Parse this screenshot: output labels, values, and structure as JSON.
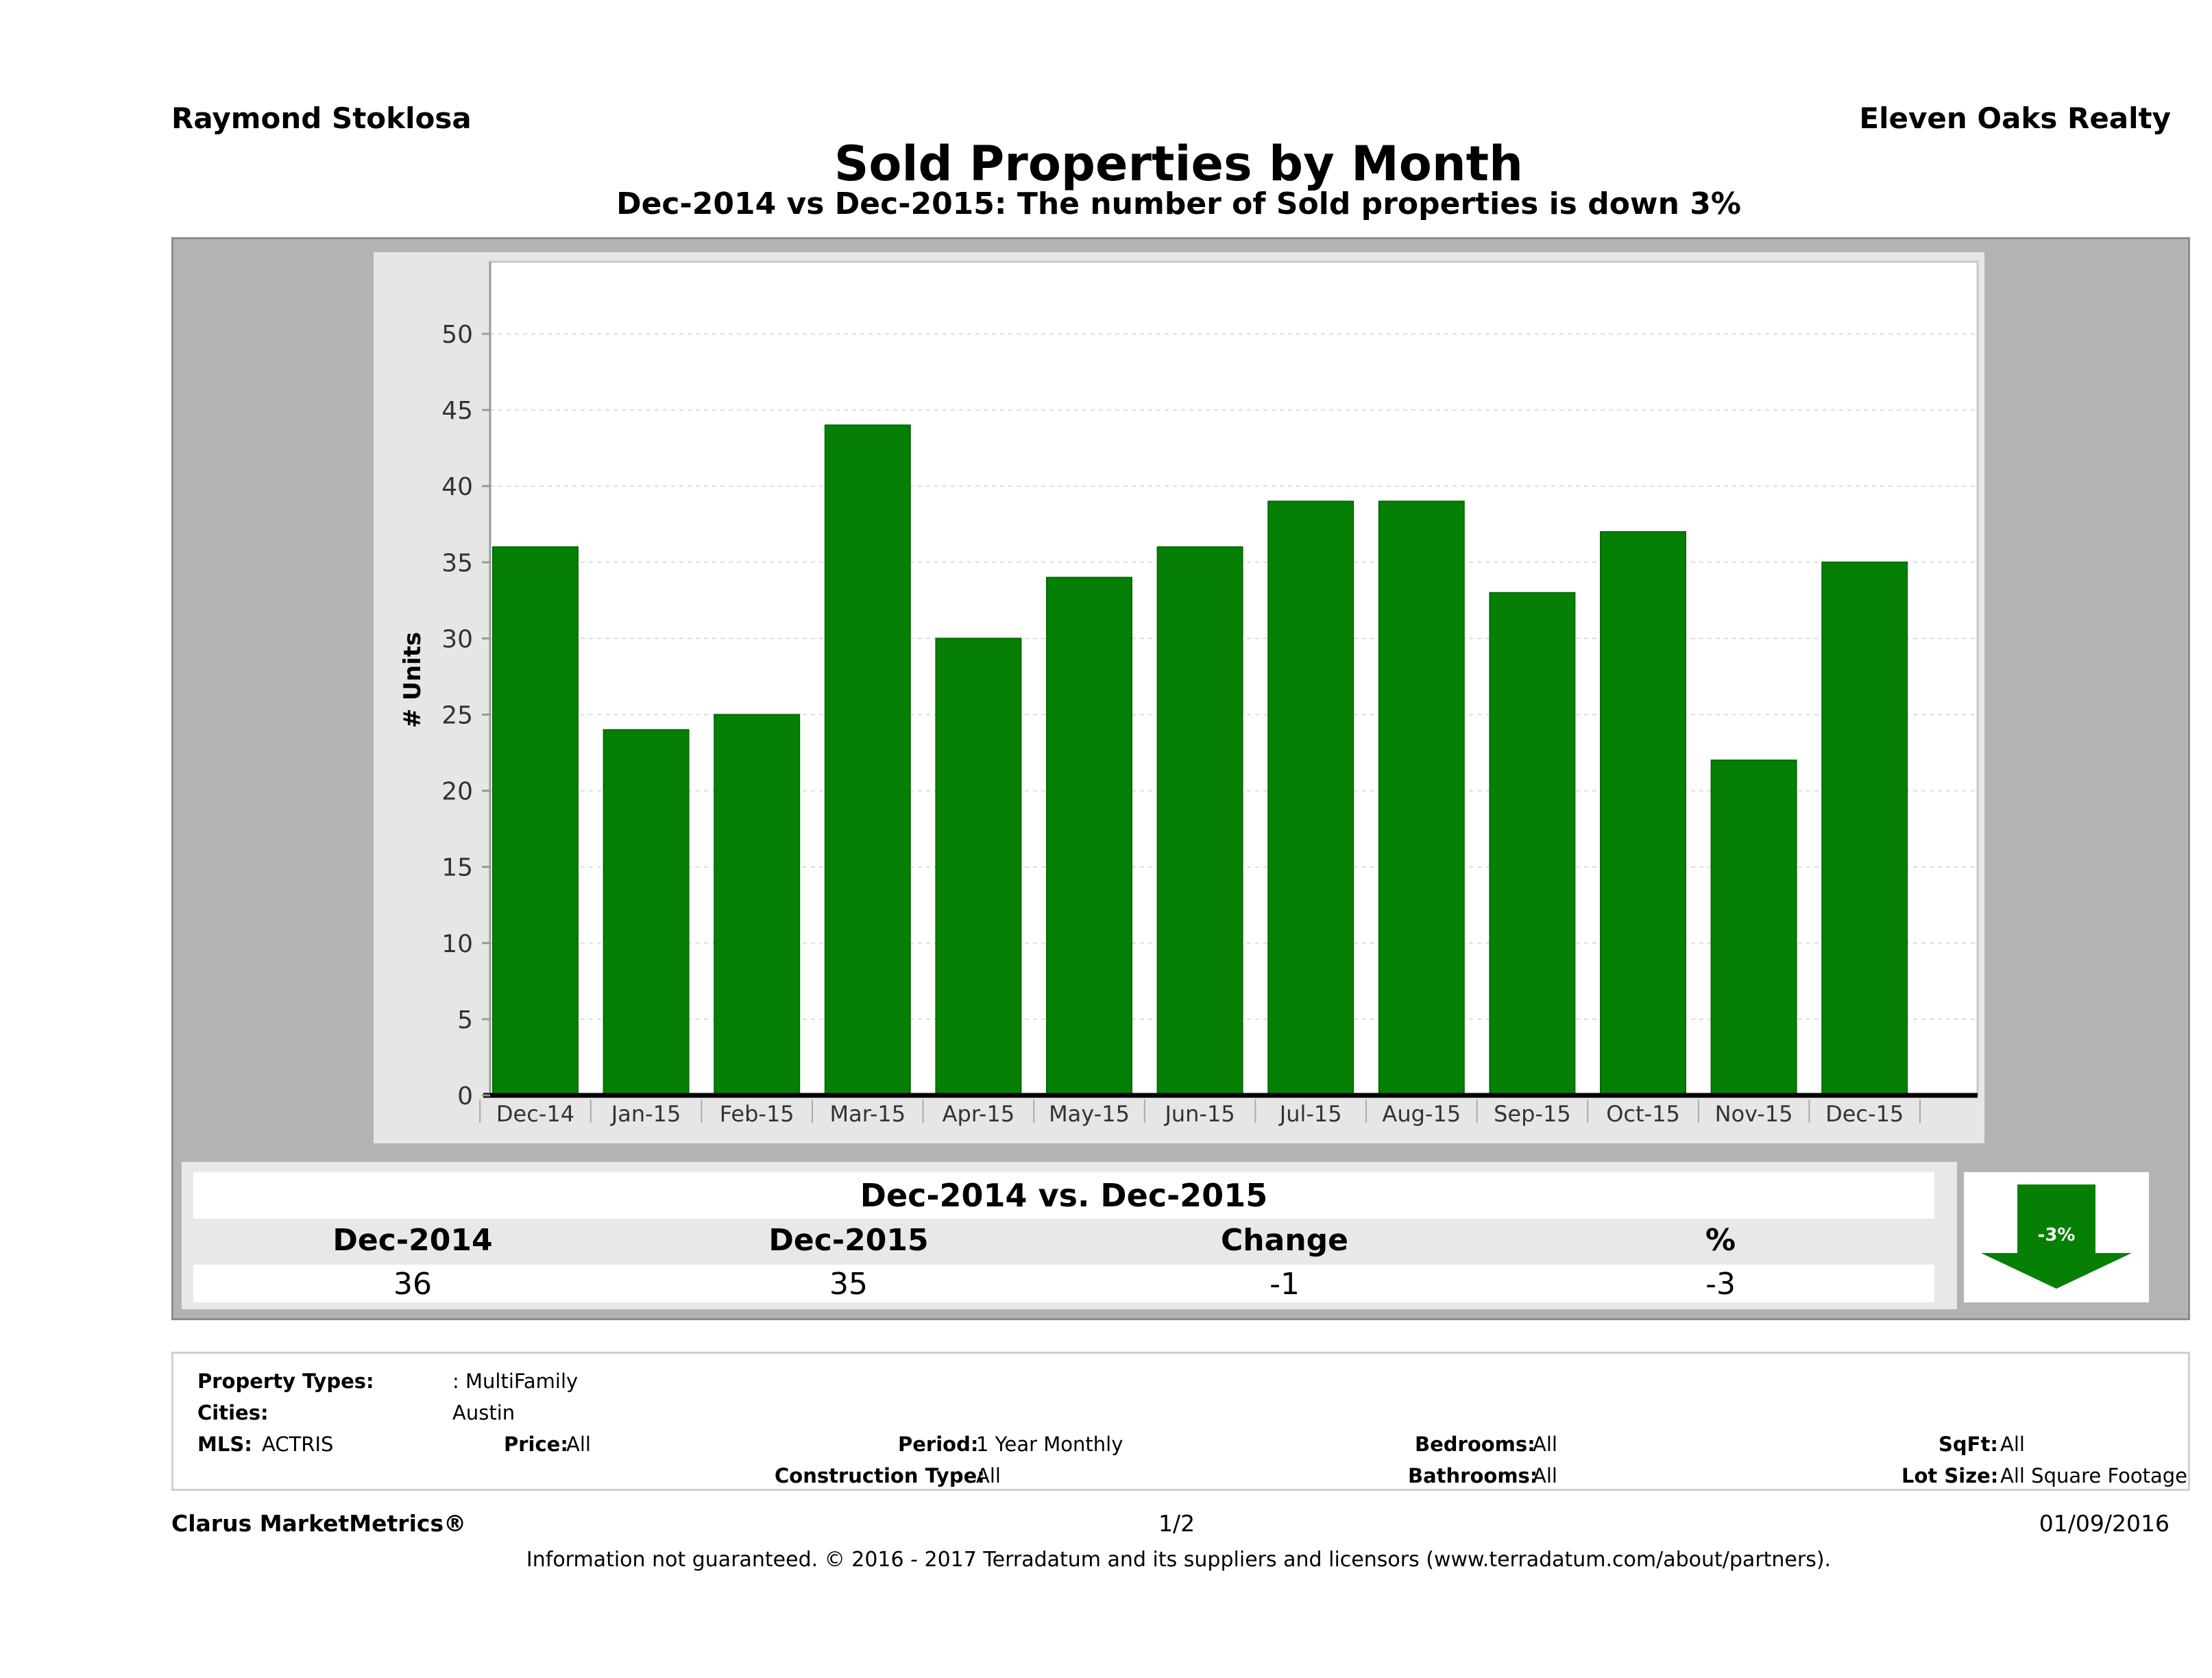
{
  "header": {
    "agent": "Raymond Stoklosa",
    "brokerage": "Eleven Oaks Realty",
    "title": "Sold Properties by Month",
    "subtitle": "Dec-2014 vs Dec-2015: The number of Sold  properties is down 3%"
  },
  "chart_data": {
    "type": "bar",
    "categories": [
      "Dec-14",
      "Jan-15",
      "Feb-15",
      "Mar-15",
      "Apr-15",
      "May-15",
      "Jun-15",
      "Jul-15",
      "Aug-15",
      "Sep-15",
      "Oct-15",
      "Nov-15",
      "Dec-15"
    ],
    "values": [
      36,
      24,
      25,
      44,
      30,
      34,
      36,
      39,
      39,
      33,
      37,
      22,
      35
    ],
    "ylabel": "# Units",
    "xlabel": "",
    "ylim": [
      0,
      52
    ],
    "yticks": [
      "0",
      "5",
      "10",
      "15",
      "20",
      "25",
      "30",
      "35",
      "40",
      "45",
      "50"
    ],
    "bar_color": "#058005",
    "grid": true
  },
  "comparison": {
    "title": "Dec-2014 vs. Dec-2015",
    "headers": [
      "Dec-2014",
      "Dec-2015",
      "Change",
      "%"
    ],
    "values": [
      "36",
      "35",
      "-1",
      "-3"
    ],
    "indicator_label": "-3%",
    "indicator_icon": "down-arrow-icon",
    "indicator_color": "#058005"
  },
  "criteria": {
    "property_types_label": "Property Types:",
    "property_types_value": ": MultiFamily",
    "cities_label": "Cities:",
    "cities_value": "Austin",
    "mls_label": "MLS:",
    "mls_value": "ACTRIS",
    "price_label": "Price:",
    "price_value": "All",
    "period_label": "Period:",
    "period_value": "1 Year Monthly",
    "construction_label": "Construction Type:",
    "construction_value": "All",
    "bedrooms_label": "Bedrooms:",
    "bedrooms_value": "All",
    "bathrooms_label": "Bathrooms:",
    "bathrooms_value": "All",
    "sqft_label": "SqFt:",
    "sqft_value": "All",
    "lotsize_label": "Lot Size:",
    "lotsize_value": "All Square Footage"
  },
  "footer": {
    "product": "Clarus MarketMetrics®",
    "page": "1/2",
    "date": "01/09/2016",
    "disclaimer": "Information not guaranteed. © 2016 - 2017 Terradatum and its suppliers and licensors (www.terradatum.com/about/partners)."
  }
}
